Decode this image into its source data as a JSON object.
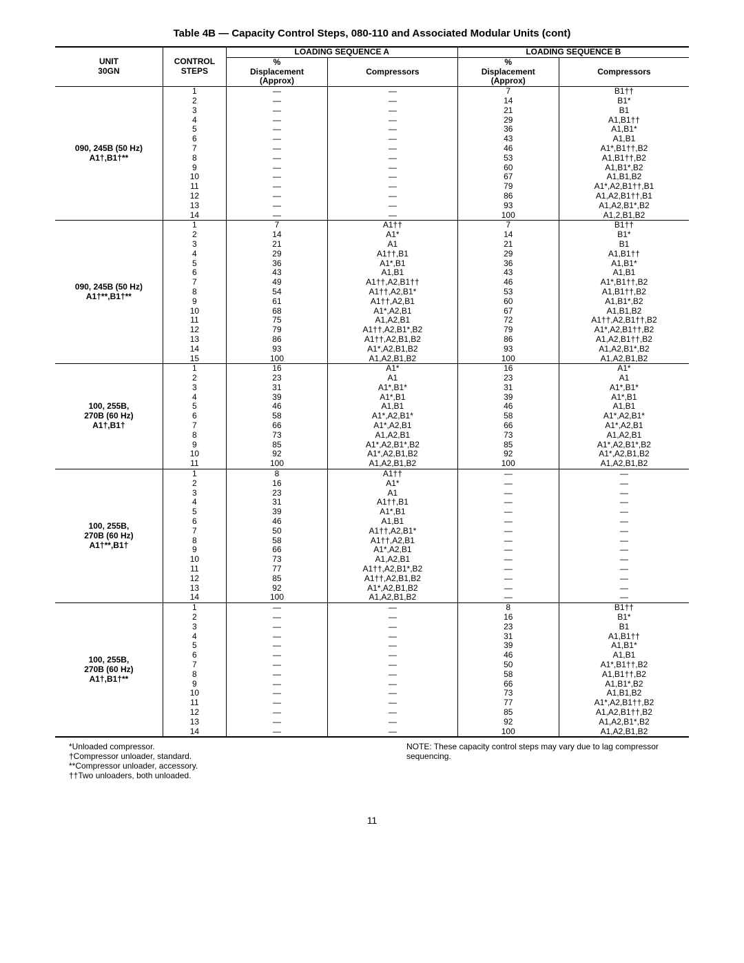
{
  "title": "Table 4B — Capacity Control Steps, 080-110 and Associated Modular Units (cont)",
  "headers": {
    "unit": "UNIT\n30GN",
    "control_steps": "CONTROL\nSTEPS",
    "seq_a": "LOADING SEQUENCE A",
    "seq_b": "LOADING SEQUENCE B",
    "disp": "%\nDisplacement\n(Approx)",
    "comp": "Compressors"
  },
  "sections": [
    {
      "unit": "090, 245B (50 Hz)\nA1†,B1†**",
      "rows": [
        [
          "1",
          "—",
          "—",
          "7",
          "B1††"
        ],
        [
          "2",
          "—",
          "—",
          "14",
          "B1*"
        ],
        [
          "3",
          "—",
          "—",
          "21",
          "B1"
        ],
        [
          "4",
          "—",
          "—",
          "29",
          "A1,B1††"
        ],
        [
          "5",
          "—",
          "—",
          "36",
          "A1,B1*"
        ],
        [
          "6",
          "—",
          "—",
          "43",
          "A1,B1"
        ],
        [
          "7",
          "—",
          "—",
          "46",
          "A1*,B1††,B2"
        ],
        [
          "8",
          "—",
          "—",
          "53",
          "A1,B1††,B2"
        ],
        [
          "9",
          "—",
          "—",
          "60",
          "A1,B1*,B2"
        ],
        [
          "10",
          "—",
          "—",
          "67",
          "A1,B1,B2"
        ],
        [
          "11",
          "—",
          "—",
          "79",
          "A1*,A2,B1††,B1"
        ],
        [
          "12",
          "—",
          "—",
          "86",
          "A1,A2,B1††,B1"
        ],
        [
          "13",
          "—",
          "—",
          "93",
          "A1,A2,B1*,B2"
        ],
        [
          "14",
          "—",
          "—",
          "100",
          "A1,2,B1,B2"
        ]
      ]
    },
    {
      "unit": "090, 245B (50 Hz)\nA1†**,B1†**",
      "rows": [
        [
          "1",
          "7",
          "A1††",
          "7",
          "B1††"
        ],
        [
          "2",
          "14",
          "A1*",
          "14",
          "B1*"
        ],
        [
          "3",
          "21",
          "A1",
          "21",
          "B1"
        ],
        [
          "4",
          "29",
          "A1††,B1",
          "29",
          "A1,B1††"
        ],
        [
          "5",
          "36",
          "A1*,B1",
          "36",
          "A1,B1*"
        ],
        [
          "6",
          "43",
          "A1,B1",
          "43",
          "A1,B1"
        ],
        [
          "7",
          "49",
          "A1††,A2,B1††",
          "46",
          "A1*,B1††,B2"
        ],
        [
          "8",
          "54",
          "A1††,A2,B1*",
          "53",
          "A1,B1††,B2"
        ],
        [
          "9",
          "61",
          "A1††,A2,B1",
          "60",
          "A1,B1*,B2"
        ],
        [
          "10",
          "68",
          "A1*,A2,B1",
          "67",
          "A1,B1,B2"
        ],
        [
          "11",
          "75",
          "A1,A2,B1",
          "72",
          "A1††,A2,B1††,B2"
        ],
        [
          "12",
          "79",
          "A1††,A2,B1*,B2",
          "79",
          "A1*,A2,B1††,B2"
        ],
        [
          "13",
          "86",
          "A1††,A2,B1,B2",
          "86",
          "A1,A2,B1††,B2"
        ],
        [
          "14",
          "93",
          "A1*,A2,B1,B2",
          "93",
          "A1,A2,B1*,B2"
        ],
        [
          "15",
          "100",
          "A1,A2,B1,B2",
          "100",
          "A1,A2,B1,B2"
        ]
      ]
    },
    {
      "unit": "100, 255B,\n270B (60 Hz)\nA1†,B1†",
      "rows": [
        [
          "1",
          "16",
          "A1*",
          "16",
          "A1*"
        ],
        [
          "2",
          "23",
          "A1",
          "23",
          "A1"
        ],
        [
          "3",
          "31",
          "A1*,B1*",
          "31",
          "A1*,B1*"
        ],
        [
          "4",
          "39",
          "A1*,B1",
          "39",
          "A1*,B1"
        ],
        [
          "5",
          "46",
          "A1,B1",
          "46",
          "A1,B1"
        ],
        [
          "6",
          "58",
          "A1*,A2,B1*",
          "58",
          "A1*,A2,B1*"
        ],
        [
          "7",
          "66",
          "A1*,A2,B1",
          "66",
          "A1*,A2,B1"
        ],
        [
          "8",
          "73",
          "A1,A2,B1",
          "73",
          "A1,A2,B1"
        ],
        [
          "9",
          "85",
          "A1*,A2,B1*,B2",
          "85",
          "A1*,A2,B1*,B2"
        ],
        [
          "10",
          "92",
          "A1*,A2,B1,B2",
          "92",
          "A1*,A2,B1,B2"
        ],
        [
          "11",
          "100",
          "A1,A2,B1,B2",
          "100",
          "A1,A2,B1,B2"
        ]
      ]
    },
    {
      "unit": "100, 255B,\n270B (60 Hz)\nA1†**,B1†",
      "rows": [
        [
          "1",
          "8",
          "A1††",
          "—",
          "—"
        ],
        [
          "2",
          "16",
          "A1*",
          "—",
          "—"
        ],
        [
          "3",
          "23",
          "A1",
          "—",
          "—"
        ],
        [
          "4",
          "31",
          "A1††,B1",
          "—",
          "—"
        ],
        [
          "5",
          "39",
          "A1*,B1",
          "—",
          "—"
        ],
        [
          "6",
          "46",
          "A1,B1",
          "—",
          "—"
        ],
        [
          "7",
          "50",
          "A1††,A2,B1*",
          "—",
          "—"
        ],
        [
          "8",
          "58",
          "A1††,A2,B1",
          "—",
          "—"
        ],
        [
          "9",
          "66",
          "A1*,A2,B1",
          "—",
          "—"
        ],
        [
          "10",
          "73",
          "A1,A2,B1",
          "—",
          "—"
        ],
        [
          "11",
          "77",
          "A1††,A2,B1*,B2",
          "—",
          "—"
        ],
        [
          "12",
          "85",
          "A1††,A2,B1,B2",
          "—",
          "—"
        ],
        [
          "13",
          "92",
          "A1*,A2,B1,B2",
          "—",
          "—"
        ],
        [
          "14",
          "100",
          "A1,A2,B1,B2",
          "—",
          "—"
        ]
      ]
    },
    {
      "unit": "100, 255B,\n270B (60 Hz)\nA1†,B1†**",
      "rows": [
        [
          "1",
          "—",
          "—",
          "8",
          "B1††"
        ],
        [
          "2",
          "—",
          "—",
          "16",
          "B1*"
        ],
        [
          "3",
          "—",
          "—",
          "23",
          "B1"
        ],
        [
          "4",
          "—",
          "—",
          "31",
          "A1,B1††"
        ],
        [
          "5",
          "—",
          "—",
          "39",
          "A1,B1*"
        ],
        [
          "6",
          "—",
          "—",
          "46",
          "A1,B1"
        ],
        [
          "7",
          "—",
          "—",
          "50",
          "A1*,B1††,B2"
        ],
        [
          "8",
          "—",
          "—",
          "58",
          "A1,B1††,B2"
        ],
        [
          "9",
          "—",
          "—",
          "66",
          "A1,B1*,B2"
        ],
        [
          "10",
          "—",
          "—",
          "73",
          "A1,B1,B2"
        ],
        [
          "11",
          "—",
          "—",
          "77",
          "A1*,A2,B1††,B2"
        ],
        [
          "12",
          "—",
          "—",
          "85",
          "A1,A2,B1††,B2"
        ],
        [
          "13",
          "—",
          "—",
          "92",
          "A1,A2,B1*,B2"
        ],
        [
          "14",
          "—",
          "—",
          "100",
          "A1,A2,B1,B2"
        ]
      ]
    }
  ],
  "footnotes_left": [
    "*Unloaded compressor.",
    "†Compressor unloader, standard.",
    "**Compressor unloader, accessory.",
    "††Two unloaders, both unloaded."
  ],
  "footnotes_right": "NOTE: These capacity control steps may vary due to lag compressor sequencing.",
  "page_number": "11"
}
